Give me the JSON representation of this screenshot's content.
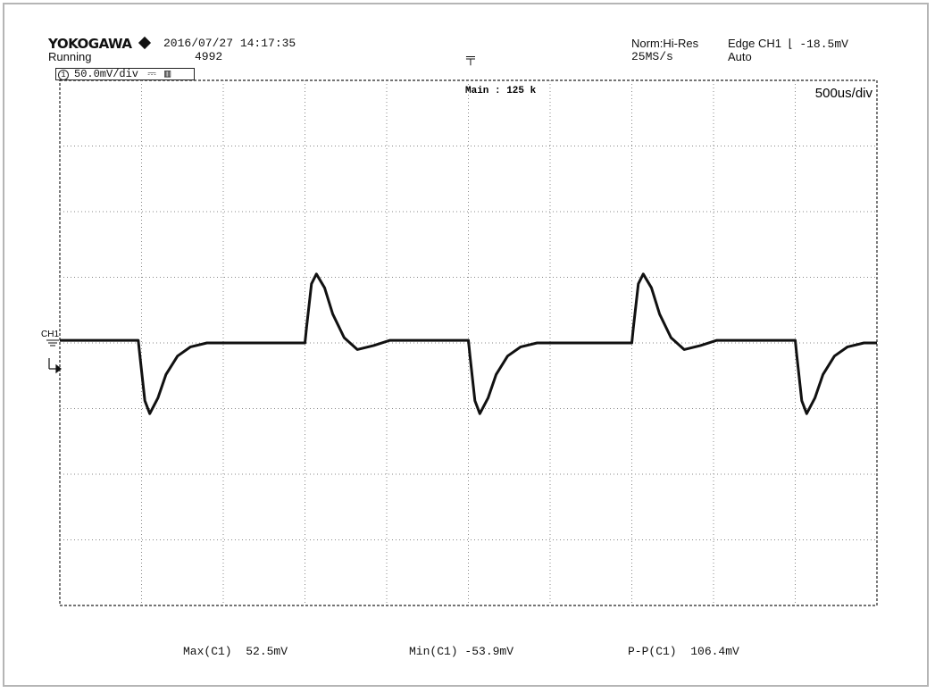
{
  "header": {
    "brand": "YOKOGAWA",
    "datetime": "2016/07/27 14:17:35",
    "status": "Running",
    "acq_count": "4992",
    "acq_mode": "Norm:Hi-Res",
    "sample_rate": "25MS/s",
    "trigger_label": "Edge CH1",
    "trigger_level": "-18.5mV",
    "trigger_mode": "Auto"
  },
  "channel_box": {
    "number": "1",
    "scale": "50.0mV/div"
  },
  "screen": {
    "record_length": "Main : 125 k",
    "timebase": "500us/div",
    "ch_label": "CH1"
  },
  "measurements": [
    {
      "label": "Max(C1)",
      "value": "52.5mV"
    },
    {
      "label": "Min(C1)",
      "value": "-53.9mV"
    },
    {
      "label": "P-P(C1)",
      "value": "106.4mV"
    }
  ],
  "chart_data": {
    "type": "line",
    "title": "",
    "xlabel": "",
    "ylabel": "",
    "x_unit": "ms",
    "y_unit": "mV",
    "xlim": [
      0,
      5
    ],
    "ylim": [
      -200,
      200
    ],
    "x_divisions": 10,
    "y_divisions": 8,
    "grid": true,
    "trace_color": "#111111",
    "series": [
      {
        "x": [
          0,
          0.48,
          0.49,
          0.52,
          0.55,
          0.6,
          0.65,
          0.72,
          0.8,
          0.9,
          1.0,
          1.5,
          1.51,
          1.54,
          1.57,
          1.62,
          1.67,
          1.74,
          1.82,
          1.92,
          2.02,
          2.5,
          2.51,
          2.54,
          2.57,
          2.62,
          2.67,
          2.74,
          2.82,
          2.92,
          3.02,
          3.5,
          3.51,
          3.54,
          3.57,
          3.62,
          3.67,
          3.74,
          3.82,
          3.92,
          4.02,
          4.5,
          4.51,
          4.54,
          4.57,
          4.62,
          4.67,
          4.74,
          4.82,
          4.92,
          5.0
        ],
        "y": [
          2,
          2,
          -10,
          -44,
          -53.9,
          -42,
          -24,
          -10,
          -3,
          0,
          0,
          0,
          12,
          45,
          52.5,
          42,
          22,
          4,
          -5,
          -2,
          2,
          2,
          -10,
          -44,
          -53.9,
          -42,
          -24,
          -10,
          -3,
          0,
          0,
          0,
          12,
          45,
          52.5,
          42,
          22,
          4,
          -5,
          -2,
          2,
          2,
          -10,
          -44,
          -53.9,
          -42,
          -24,
          -10,
          -3,
          0,
          0
        ]
      }
    ]
  }
}
